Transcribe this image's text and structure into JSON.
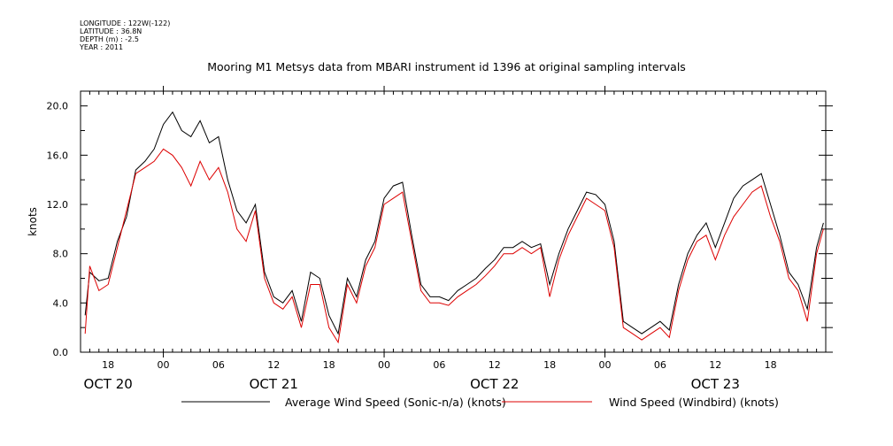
{
  "header": {
    "longitude": "LONGITUDE : 122W(-122)",
    "latitude": "LATITUDE : 36.8N",
    "depth": "DEPTH (m) : -2.5",
    "year": "YEAR : 2011"
  },
  "colors": {
    "series_black": "#000000",
    "series_red": "#dd0000"
  },
  "chart_data": {
    "type": "line",
    "title": "Mooring M1 Metsys data from MBARI instrument id 1396 at original sampling intervals",
    "ylabel": "knots",
    "ylim": [
      0,
      21.2
    ],
    "grid": false,
    "yticks": [
      0,
      4,
      8,
      12,
      16,
      20
    ],
    "ytick_labels": [
      "0.0",
      "4.0",
      "8.0",
      "12.0",
      "16.0",
      "20.0"
    ],
    "xlim": [
      "2011-10-20T15:00",
      "2011-10-24T00:00"
    ],
    "xtick_labels": [
      "18",
      "00",
      "06",
      "12",
      "18",
      "00",
      "06",
      "12",
      "18",
      "00",
      "06",
      "12",
      "18"
    ],
    "xtick_times": [
      "2011-10-20T18:00",
      "2011-10-21T00:00",
      "2011-10-21T06:00",
      "2011-10-21T12:00",
      "2011-10-21T18:00",
      "2011-10-22T00:00",
      "2011-10-22T06:00",
      "2011-10-22T12:00",
      "2011-10-22T18:00",
      "2011-10-23T00:00",
      "2011-10-23T06:00",
      "2011-10-23T12:00",
      "2011-10-23T18:00"
    ],
    "date_labels": [
      "OCT 20",
      "OCT 21",
      "OCT 22",
      "OCT 23"
    ],
    "date_label_times": [
      "2011-10-20T18:00",
      "2011-10-21T12:00",
      "2011-10-22T12:00",
      "2011-10-23T12:00"
    ],
    "series": [
      {
        "name": "Average Wind Speed (Sonic-n/a) (knots)",
        "color": "#000000",
        "x": [
          "2011-10-20T15:30",
          "2011-10-20T16:00",
          "2011-10-20T17:00",
          "2011-10-20T18:00",
          "2011-10-20T19:00",
          "2011-10-20T20:00",
          "2011-10-20T21:00",
          "2011-10-20T22:00",
          "2011-10-20T23:00",
          "2011-10-21T00:00",
          "2011-10-21T01:00",
          "2011-10-21T02:00",
          "2011-10-21T03:00",
          "2011-10-21T04:00",
          "2011-10-21T05:00",
          "2011-10-21T06:00",
          "2011-10-21T07:00",
          "2011-10-21T08:00",
          "2011-10-21T09:00",
          "2011-10-21T10:00",
          "2011-10-21T11:00",
          "2011-10-21T12:00",
          "2011-10-21T13:00",
          "2011-10-21T14:00",
          "2011-10-21T15:00",
          "2011-10-21T16:00",
          "2011-10-21T17:00",
          "2011-10-21T18:00",
          "2011-10-21T19:00",
          "2011-10-21T20:00",
          "2011-10-21T21:00",
          "2011-10-21T22:00",
          "2011-10-21T23:00",
          "2011-10-22T00:00",
          "2011-10-22T01:00",
          "2011-10-22T02:00",
          "2011-10-22T03:00",
          "2011-10-22T04:00",
          "2011-10-22T05:00",
          "2011-10-22T06:00",
          "2011-10-22T07:00",
          "2011-10-22T08:00",
          "2011-10-22T09:00",
          "2011-10-22T10:00",
          "2011-10-22T11:00",
          "2011-10-22T12:00",
          "2011-10-22T13:00",
          "2011-10-22T14:00",
          "2011-10-22T15:00",
          "2011-10-22T16:00",
          "2011-10-22T17:00",
          "2011-10-22T18:00",
          "2011-10-22T19:00",
          "2011-10-22T20:00",
          "2011-10-22T21:00",
          "2011-10-22T22:00",
          "2011-10-22T23:00",
          "2011-10-23T00:00",
          "2011-10-23T01:00",
          "2011-10-23T02:00",
          "2011-10-23T03:00",
          "2011-10-23T04:00",
          "2011-10-23T05:00",
          "2011-10-23T06:00",
          "2011-10-23T07:00",
          "2011-10-23T08:00",
          "2011-10-23T09:00",
          "2011-10-23T10:00",
          "2011-10-23T11:00",
          "2011-10-23T12:00",
          "2011-10-23T13:00",
          "2011-10-23T14:00",
          "2011-10-23T15:00",
          "2011-10-23T16:00",
          "2011-10-23T17:00",
          "2011-10-23T18:00",
          "2011-10-23T19:00",
          "2011-10-23T20:00",
          "2011-10-23T21:00",
          "2011-10-23T22:00",
          "2011-10-23T23:00",
          "2011-10-23T23:45"
        ],
        "y": [
          3.0,
          6.5,
          5.8,
          6.0,
          9.0,
          11.0,
          14.8,
          15.5,
          16.5,
          18.5,
          19.5,
          18.0,
          17.5,
          18.8,
          17.0,
          17.5,
          14.0,
          11.5,
          10.5,
          12.0,
          6.5,
          4.5,
          4.0,
          5.0,
          2.5,
          6.5,
          6.0,
          3.0,
          1.5,
          6.0,
          4.5,
          7.5,
          9.0,
          12.5,
          13.5,
          13.8,
          9.5,
          5.5,
          4.5,
          4.5,
          4.2,
          5.0,
          5.5,
          6.0,
          6.8,
          7.5,
          8.5,
          8.5,
          9.0,
          8.5,
          8.8,
          5.5,
          8.0,
          10.0,
          11.5,
          13.0,
          12.8,
          12.0,
          9.0,
          2.5,
          2.0,
          1.5,
          2.0,
          2.5,
          1.8,
          5.5,
          8.0,
          9.5,
          10.5,
          8.5,
          10.5,
          12.5,
          13.5,
          14.0,
          14.5,
          12.0,
          9.5,
          6.5,
          5.5,
          3.5,
          8.5,
          10.5
        ]
      },
      {
        "name": "Wind Speed (Windbird) (knots)",
        "color": "#dd0000",
        "x": [
          "2011-10-20T15:30",
          "2011-10-20T16:00",
          "2011-10-20T17:00",
          "2011-10-20T18:00",
          "2011-10-20T19:00",
          "2011-10-20T20:00",
          "2011-10-20T21:00",
          "2011-10-20T22:00",
          "2011-10-20T23:00",
          "2011-10-21T00:00",
          "2011-10-21T01:00",
          "2011-10-21T02:00",
          "2011-10-21T03:00",
          "2011-10-21T04:00",
          "2011-10-21T05:00",
          "2011-10-21T06:00",
          "2011-10-21T07:00",
          "2011-10-21T08:00",
          "2011-10-21T09:00",
          "2011-10-21T10:00",
          "2011-10-21T11:00",
          "2011-10-21T12:00",
          "2011-10-21T13:00",
          "2011-10-21T14:00",
          "2011-10-21T15:00",
          "2011-10-21T16:00",
          "2011-10-21T17:00",
          "2011-10-21T18:00",
          "2011-10-21T19:00",
          "2011-10-21T20:00",
          "2011-10-21T21:00",
          "2011-10-21T22:00",
          "2011-10-21T23:00",
          "2011-10-22T00:00",
          "2011-10-22T01:00",
          "2011-10-22T02:00",
          "2011-10-22T03:00",
          "2011-10-22T04:00",
          "2011-10-22T05:00",
          "2011-10-22T06:00",
          "2011-10-22T07:00",
          "2011-10-22T08:00",
          "2011-10-22T09:00",
          "2011-10-22T10:00",
          "2011-10-22T11:00",
          "2011-10-22T12:00",
          "2011-10-22T13:00",
          "2011-10-22T14:00",
          "2011-10-22T15:00",
          "2011-10-22T16:00",
          "2011-10-22T17:00",
          "2011-10-22T18:00",
          "2011-10-22T19:00",
          "2011-10-22T20:00",
          "2011-10-22T21:00",
          "2011-10-22T22:00",
          "2011-10-22T23:00",
          "2011-10-23T00:00",
          "2011-10-23T01:00",
          "2011-10-23T02:00",
          "2011-10-23T03:00",
          "2011-10-23T04:00",
          "2011-10-23T05:00",
          "2011-10-23T06:00",
          "2011-10-23T07:00",
          "2011-10-23T08:00",
          "2011-10-23T09:00",
          "2011-10-23T10:00",
          "2011-10-23T11:00",
          "2011-10-23T12:00",
          "2011-10-23T13:00",
          "2011-10-23T14:00",
          "2011-10-23T15:00",
          "2011-10-23T16:00",
          "2011-10-23T17:00",
          "2011-10-23T18:00",
          "2011-10-23T19:00",
          "2011-10-23T20:00",
          "2011-10-23T21:00",
          "2011-10-23T22:00",
          "2011-10-23T23:00",
          "2011-10-23T23:45"
        ],
        "y": [
          1.5,
          7.0,
          5.0,
          5.5,
          8.5,
          11.5,
          14.5,
          15.0,
          15.5,
          16.5,
          16.0,
          15.0,
          13.5,
          15.5,
          14.0,
          15.0,
          13.0,
          10.0,
          9.0,
          11.5,
          6.0,
          4.0,
          3.5,
          4.5,
          2.0,
          5.5,
          5.5,
          2.0,
          0.8,
          5.5,
          4.0,
          7.0,
          8.5,
          12.0,
          12.5,
          13.0,
          9.0,
          5.0,
          4.0,
          4.0,
          3.8,
          4.5,
          5.0,
          5.5,
          6.2,
          7.0,
          8.0,
          8.0,
          8.5,
          8.0,
          8.5,
          4.5,
          7.5,
          9.5,
          11.0,
          12.5,
          12.0,
          11.5,
          8.5,
          2.0,
          1.5,
          1.0,
          1.5,
          2.0,
          1.2,
          5.0,
          7.5,
          9.0,
          9.5,
          7.5,
          9.5,
          11.0,
          12.0,
          13.0,
          13.5,
          11.0,
          9.0,
          6.0,
          5.0,
          2.5,
          8.0,
          10.0
        ]
      }
    ]
  }
}
